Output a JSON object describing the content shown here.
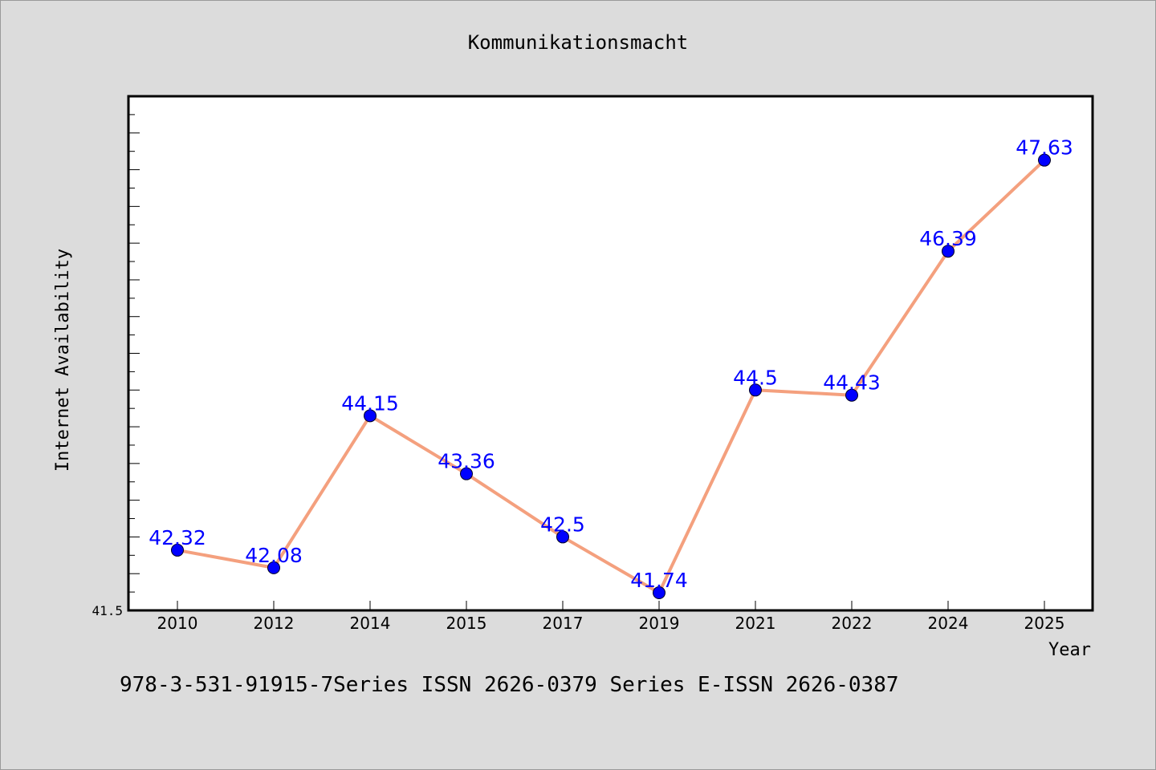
{
  "chart_data": {
    "type": "line",
    "title": "Kommunikationsmacht",
    "xlabel": "Year",
    "ylabel": "Internet Availability",
    "categories": [
      "2010",
      "2012",
      "2014",
      "2015",
      "2017",
      "2019",
      "2021",
      "2022",
      "2024",
      "2025"
    ],
    "values": [
      42.32,
      42.08,
      44.15,
      43.36,
      42.5,
      41.74,
      44.5,
      44.43,
      46.39,
      47.63
    ],
    "data_labels": [
      "42.32",
      "42.08",
      "44.15",
      "43.36",
      "42.5",
      "41.74",
      "44.5",
      "44.43",
      "46.39",
      "47.63"
    ],
    "ylim": [
      41.5,
      48.5
    ],
    "ytick_label": "41.5",
    "grid": false,
    "colors": {
      "line": "#f4a07e",
      "marker": "#0000ff",
      "data_label": "#0000ff",
      "plot_background": "#ffffff",
      "page_background": "#dcdcdc"
    }
  },
  "footer": {
    "text": "978-3-531-91915-7Series ISSN 2626-0379 Series E-ISSN 2626-0387"
  }
}
